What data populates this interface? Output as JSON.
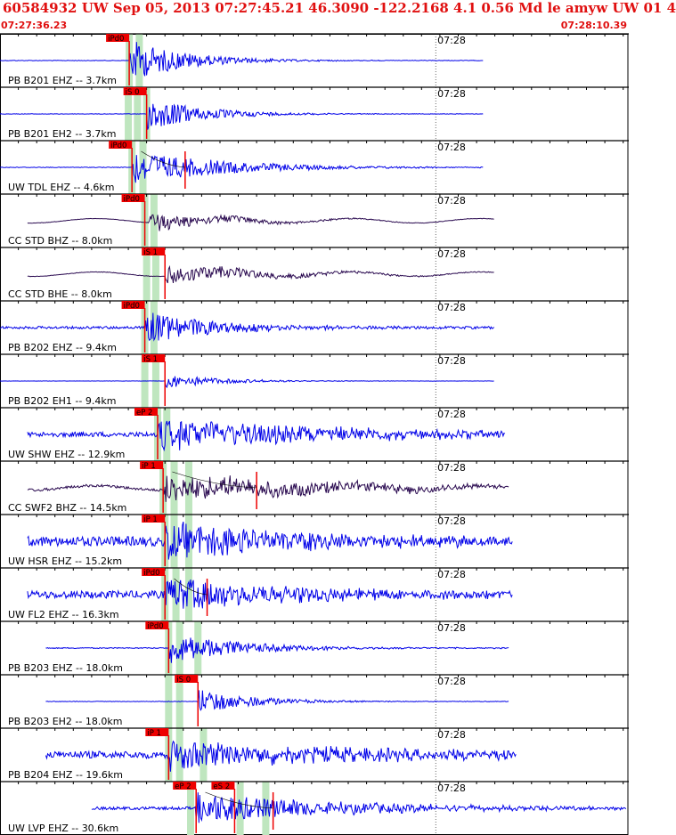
{
  "header": {
    "title": "60584932 UW Sep 05, 2013 07:27:45.21   46.3090 -122.2168  4.1 0.56 Md le amyw UW 01    4",
    "start_time": "07:27:36.23",
    "end_time": "07:28:10.39"
  },
  "colors": {
    "trace_blue": "#0000e8",
    "trace_dark": "#2a0a50",
    "pick_red": "#ee0000",
    "window_green": "#bfe6bf",
    "tick_label": "#000000"
  },
  "chart_data": {
    "type": "line",
    "title": "",
    "xlabel": "",
    "ylabel": "",
    "time_start_s": 0,
    "time_end_s": 34.16,
    "minute_tick": {
      "label": "07:28",
      "t": 23.77
    },
    "traces": [
      {
        "label": "PB B201 EHZ -- 3.7km",
        "color": "blue",
        "pick": "iPd0",
        "pick_t": 7.05,
        "green_t": [
          7.05,
          7.6
        ],
        "end_t": 26.4,
        "amp": 30,
        "onset_t": 7.05,
        "burst_dur": 3.0,
        "noise": 0.02,
        "mark_t": null
      },
      {
        "label": "PB B201 EH2 -- 3.7km",
        "color": "blue",
        "pick": "iS 0",
        "pick_t": 8.0,
        "green_t": [
          7.0,
          7.5,
          8.0
        ],
        "end_t": 26.4,
        "amp": 24,
        "onset_t": 8.0,
        "burst_dur": 3.0,
        "noise": 0.02,
        "mark_t": null
      },
      {
        "label": "UW TDL EHZ -- 4.6km",
        "color": "blue",
        "pick": "iPd0",
        "pick_t": 7.2,
        "green_t": [
          7.2,
          7.8
        ],
        "end_t": 26.4,
        "amp": 24,
        "onset_t": 7.2,
        "burst_dur": 5.0,
        "noise": 0.03,
        "mark_t": 10.1
      },
      {
        "label": "CC STD BHZ -- 8.0km",
        "color": "dark",
        "pick": "iPd0",
        "pick_t": 7.9,
        "green_t": [
          7.9,
          8.4
        ],
        "end_t": 27.0,
        "amp": 14,
        "onset_t": 8.1,
        "burst_dur": 4.0,
        "noise": 0.03,
        "mark_t": null
      },
      {
        "label": "CC STD BHE -- 8.0km",
        "color": "dark",
        "pick": "iS 1",
        "pick_t": 9.0,
        "green_t": [
          8.0,
          8.5
        ],
        "end_t": 27.0,
        "amp": 14,
        "onset_t": 9.0,
        "burst_dur": 5.0,
        "noise": 0.04,
        "mark_t": null
      },
      {
        "label": "PB B202 EHZ -- 9.4km",
        "color": "blue",
        "pick": "iPd0",
        "pick_t": 7.9,
        "green_t": [
          7.9,
          8.4
        ],
        "end_t": 27.0,
        "amp": 24,
        "onset_t": 7.9,
        "burst_dur": 4.0,
        "noise": 0.12,
        "mark_t": null
      },
      {
        "label": "PB B202 EH1 -- 9.4km",
        "color": "blue",
        "pick": "iS 1",
        "pick_t": 9.0,
        "green_t": [
          7.9,
          8.5
        ],
        "end_t": 27.0,
        "amp": 10,
        "onset_t": 9.0,
        "burst_dur": 3.0,
        "noise": 0.03,
        "mark_t": null
      },
      {
        "label": "UW SHW EHZ -- 12.9km",
        "color": "blue",
        "pick": "eP 2",
        "pick_t": 8.6,
        "green_t": [
          8.6,
          9.1
        ],
        "end_t": 27.6,
        "amp": 22,
        "onset_t": 8.6,
        "burst_dur": 10.0,
        "noise": 0.25,
        "mark_t": null
      },
      {
        "label": "CC SWF2 BHZ -- 14.5km",
        "color": "dark",
        "pick": "iP 1",
        "pick_t": 8.9,
        "green_t": [
          8.9,
          9.5,
          10.3
        ],
        "end_t": 27.8,
        "amp": 20,
        "onset_t": 8.9,
        "burst_dur": 9.0,
        "noise": 0.15,
        "mark_t": 14.0
      },
      {
        "label": "UW HSR EHZ -- 15.2km",
        "color": "blue",
        "pick": "iP 1",
        "pick_t": 9.0,
        "green_t": [
          9.0,
          9.5,
          10.3
        ],
        "end_t": 28.0,
        "amp": 24,
        "onset_t": 9.0,
        "burst_dur": 8.0,
        "noise": 0.45,
        "mark_t": null
      },
      {
        "label": "UW FL2 EHZ -- 16.3km",
        "color": "blue",
        "pick": "iPd0",
        "pick_t": 9.0,
        "green_t": [
          9.0,
          9.6,
          10.3
        ],
        "end_t": 28.0,
        "amp": 24,
        "onset_t": 9.0,
        "burst_dur": 7.0,
        "noise": 0.35,
        "mark_t": 11.3
      },
      {
        "label": "PB B203 EHZ -- 18.0km",
        "color": "blue",
        "pick": "iPd0",
        "pick_t": 9.2,
        "green_t": [
          9.2,
          9.8,
          10.8
        ],
        "end_t": 27.8,
        "amp": 22,
        "onset_t": 9.2,
        "burst_dur": 4.0,
        "noise": 0.05,
        "mark_t": null
      },
      {
        "label": "PB B203 EH2 -- 18.0km",
        "color": "blue",
        "pick": "iS 0",
        "pick_t": 10.8,
        "green_t": [
          9.2,
          9.8
        ],
        "end_t": 27.8,
        "amp": 18,
        "onset_t": 10.8,
        "burst_dur": 3.0,
        "noise": 0.03,
        "mark_t": null
      },
      {
        "label": "PB B204 EHZ -- 19.6km",
        "color": "blue",
        "pick": "iP 1",
        "pick_t": 9.2,
        "green_t": [
          9.2,
          9.8,
          11.1
        ],
        "end_t": 28.2,
        "amp": 20,
        "onset_t": 9.2,
        "burst_dur": 10.0,
        "noise": 0.4,
        "mark_t": null
      },
      {
        "label": "UW LVP EHZ -- 30.6km",
        "color": "blue",
        "pick": "eP 2",
        "pick_t": 10.7,
        "green_t": [
          10.4,
          13.1,
          14.5
        ],
        "end_t": 34.16,
        "amp": 22,
        "onset_t": 10.7,
        "burst_dur": 8.0,
        "noise": 0.15,
        "mark_t": 14.9,
        "pick2": "eS 2",
        "pick2_t": 12.8
      }
    ]
  }
}
